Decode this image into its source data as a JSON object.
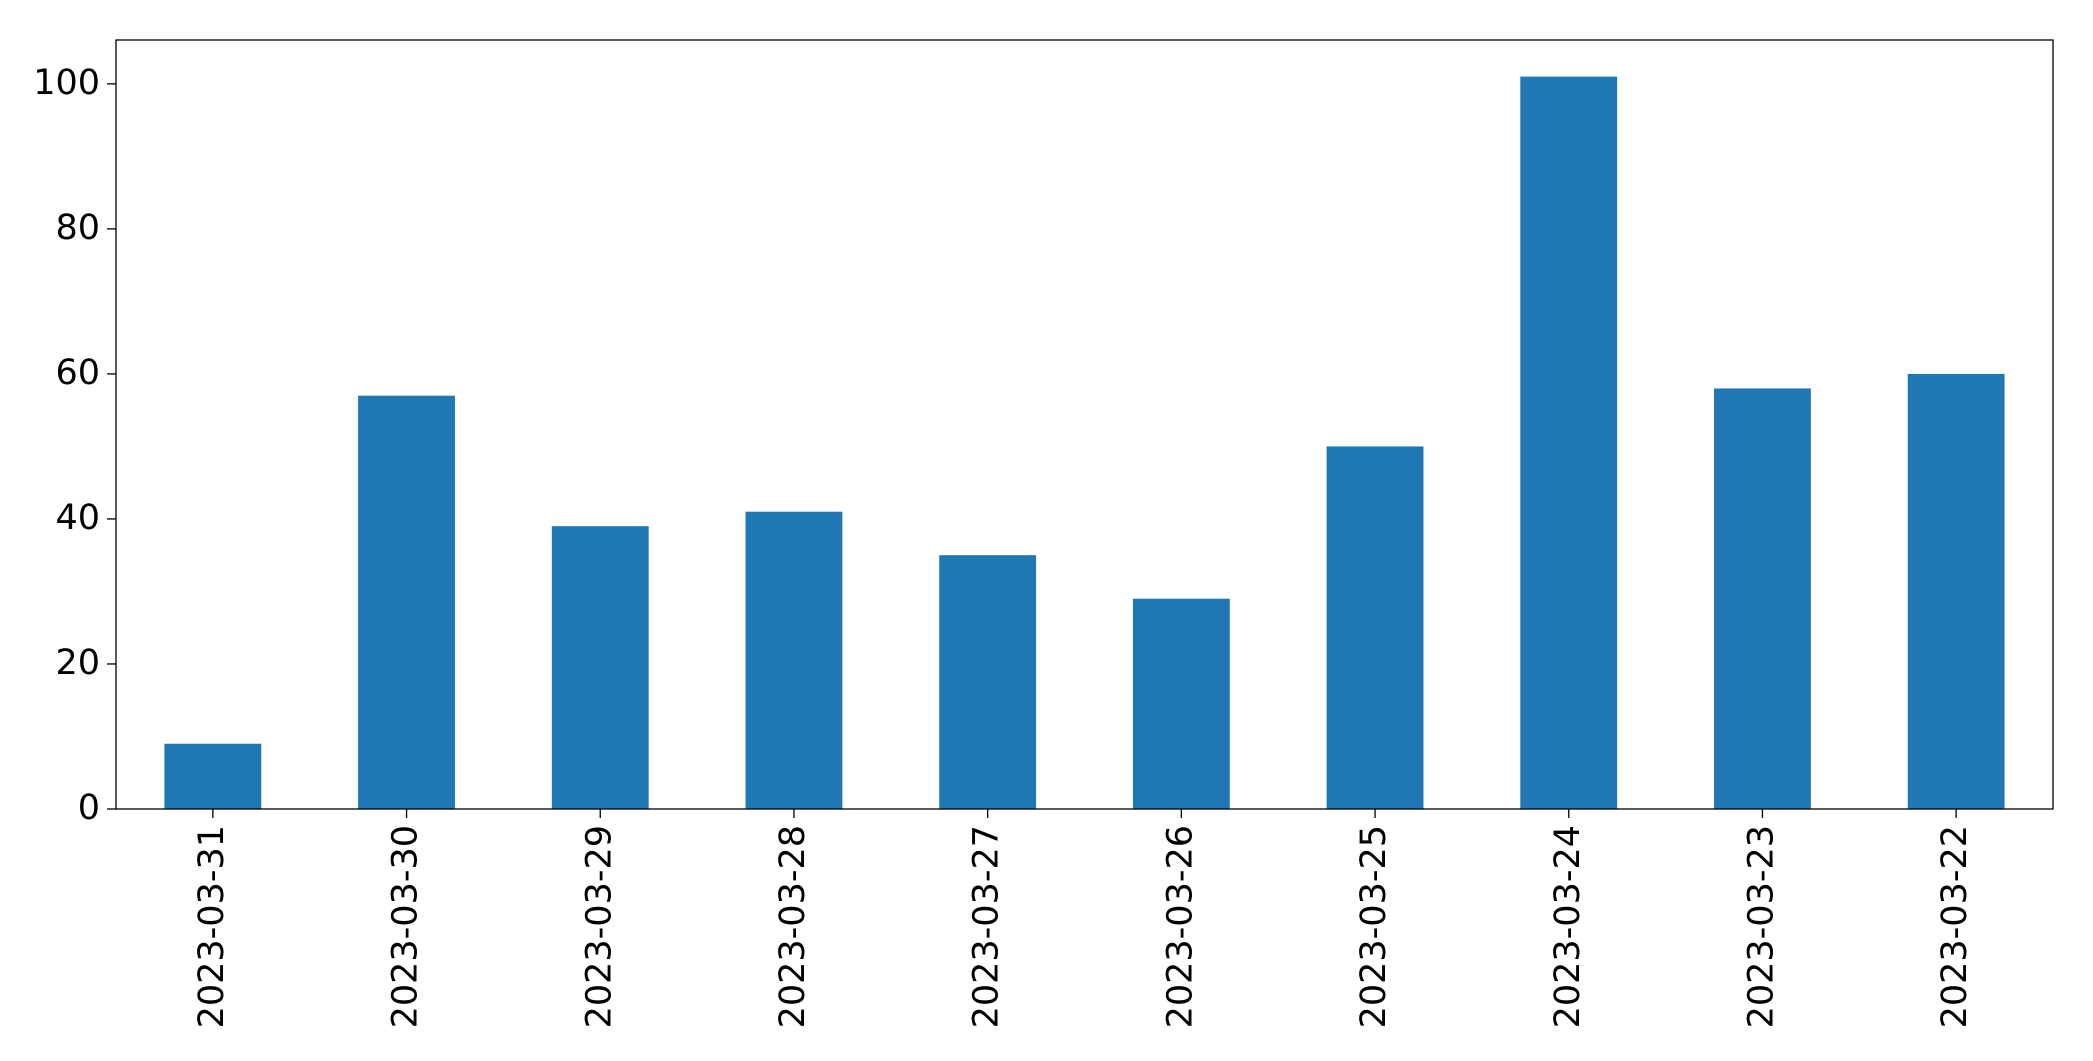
{
  "chart_data": {
    "type": "bar",
    "categories": [
      "2023-03-31",
      "2023-03-30",
      "2023-03-29",
      "2023-03-28",
      "2023-03-27",
      "2023-03-26",
      "2023-03-25",
      "2023-03-24",
      "2023-03-23",
      "2023-03-22"
    ],
    "values": [
      9,
      57,
      39,
      41,
      35,
      29,
      50,
      101,
      58,
      60
    ],
    "color": "#1f77b4",
    "ylim": [
      0,
      106.05
    ],
    "yticks": [
      0,
      20,
      40,
      60,
      80,
      100
    ],
    "grid": false
  }
}
